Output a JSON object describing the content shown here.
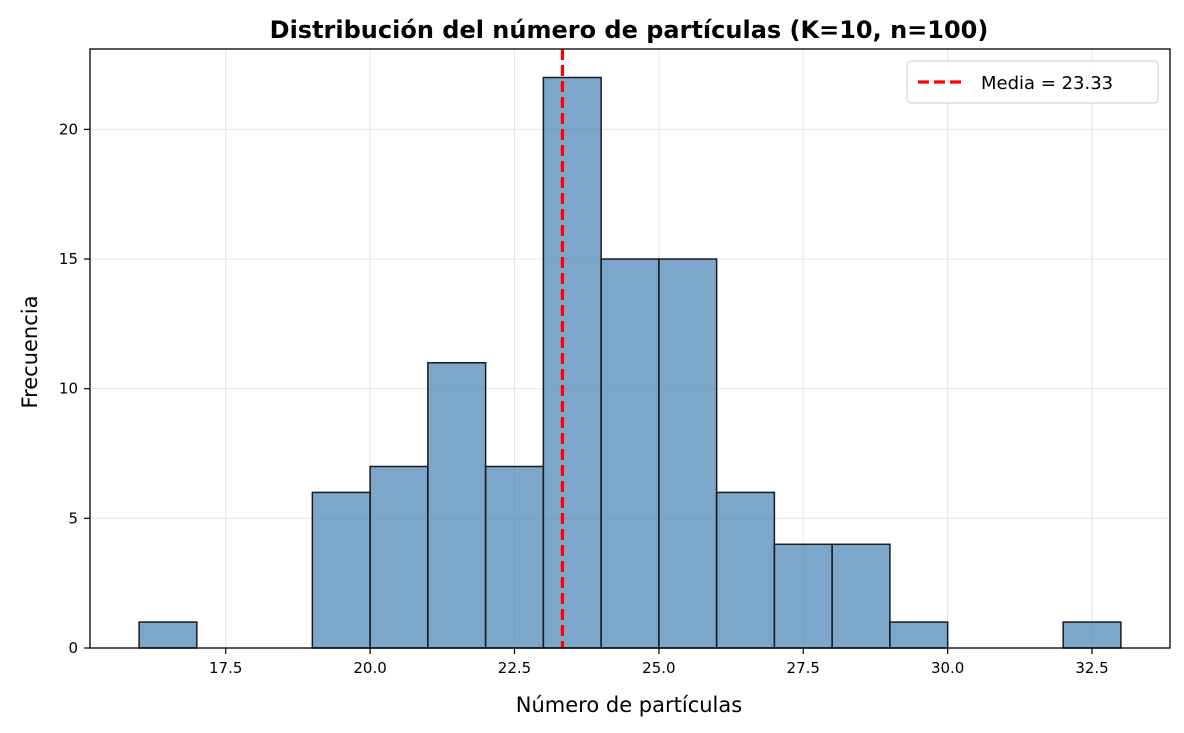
{
  "chart_data": {
    "type": "bar",
    "subtype": "histogram",
    "title": "Distribución del número de partículas (K=10, n=100)",
    "xlabel": "Número de partículas",
    "ylabel": "Frecuencia",
    "xlim": [
      15.15,
      33.85
    ],
    "ylim": [
      0,
      23.1
    ],
    "xticks": [
      17.5,
      20.0,
      22.5,
      25.0,
      27.5,
      30.0,
      32.5
    ],
    "xtick_labels": [
      "17.5",
      "20.0",
      "22.5",
      "25.0",
      "27.5",
      "30.0",
      "32.5"
    ],
    "yticks": [
      0,
      5,
      10,
      15,
      20
    ],
    "ytick_labels": [
      "0",
      "5",
      "10",
      "15",
      "20"
    ],
    "grid": true,
    "bins": [
      {
        "x0": 16,
        "x1": 17,
        "count": 1
      },
      {
        "x0": 19,
        "x1": 20,
        "count": 6
      },
      {
        "x0": 20,
        "x1": 21,
        "count": 7
      },
      {
        "x0": 21,
        "x1": 22,
        "count": 11
      },
      {
        "x0": 22,
        "x1": 23,
        "count": 7
      },
      {
        "x0": 23,
        "x1": 24,
        "count": 22
      },
      {
        "x0": 24,
        "x1": 25,
        "count": 15
      },
      {
        "x0": 25,
        "x1": 26,
        "count": 15
      },
      {
        "x0": 26,
        "x1": 27,
        "count": 6
      },
      {
        "x0": 27,
        "x1": 28,
        "count": 4
      },
      {
        "x0": 28,
        "x1": 29,
        "count": 4
      },
      {
        "x0": 29,
        "x1": 30,
        "count": 1
      },
      {
        "x0": 32,
        "x1": 33,
        "count": 1
      }
    ],
    "bar_color": "#4682b4",
    "bar_edge_color": "#1a1a1a",
    "mean_line": {
      "value": 23.33,
      "color": "#ff0000",
      "style": "dashed"
    },
    "legend": {
      "position": "top-right",
      "entries": [
        {
          "label": "Media = 23.33",
          "color": "#ff0000",
          "style": "dashed"
        }
      ]
    }
  }
}
